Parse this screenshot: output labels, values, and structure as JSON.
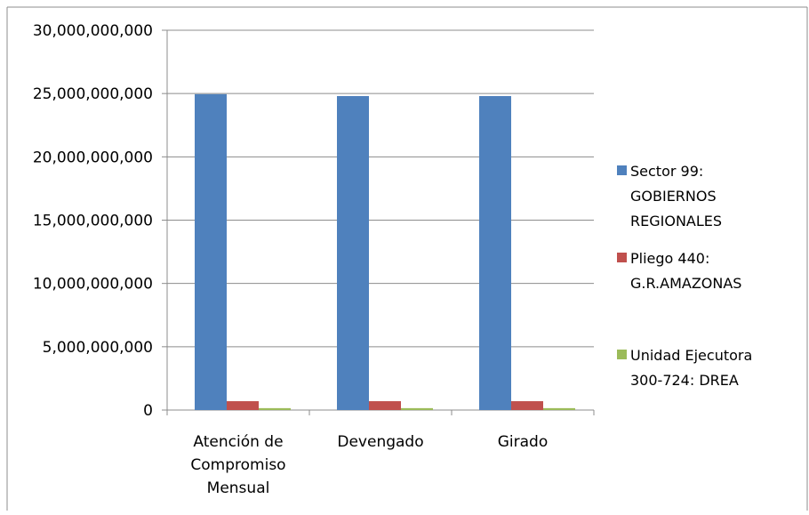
{
  "chart_data": {
    "type": "bar",
    "categories": [
      [
        "Atención de",
        "Compromiso",
        "Mensual"
      ],
      [
        "Devengado"
      ],
      [
        "Girado"
      ]
    ],
    "series": [
      {
        "name": [
          "Sector 99:",
          "GOBIERNOS",
          "REGIONALES"
        ],
        "color": "#4F81BD",
        "values": [
          24950000000,
          24800000000,
          24800000000
        ]
      },
      {
        "name": [
          "Pliego 440:",
          "G.R.AMAZONAS"
        ],
        "color": "#C0504D",
        "values": [
          700000000,
          700000000,
          700000000
        ]
      },
      {
        "name": [
          "Unidad Ejecutora",
          "300-724: DREA"
        ],
        "color": "#9BBB59",
        "values": [
          150000000,
          150000000,
          150000000
        ]
      }
    ],
    "y_ticks": [
      "0",
      "5,000,000,000",
      "10,000,000,000",
      "15,000,000,000",
      "20,000,000,000",
      "25,000,000,000",
      "30,000,000,000"
    ],
    "ylim": [
      0,
      30000000000
    ],
    "grid": true,
    "legend_position": "right"
  }
}
